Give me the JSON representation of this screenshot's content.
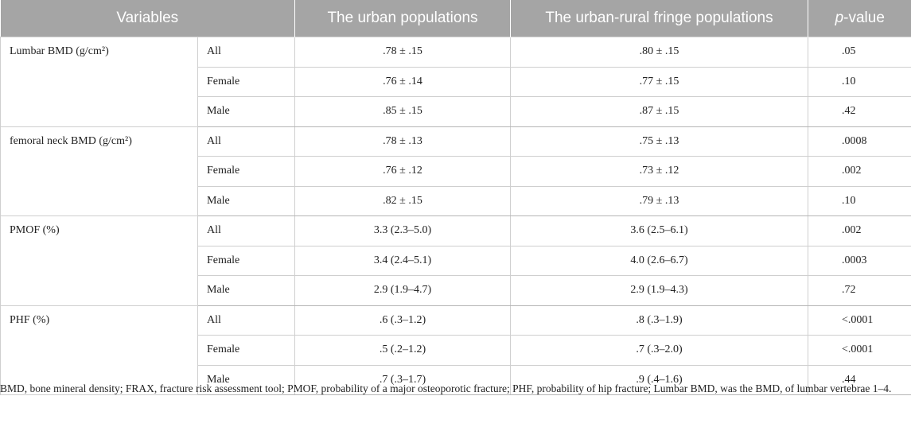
{
  "table": {
    "headers": {
      "variables": "Variables",
      "urban": "The urban populations",
      "fringe": "The urban-rural fringe populations",
      "p_italic": "p",
      "p_rest": "-value"
    },
    "groups": [
      {
        "variable": "Lumbar BMD (g/cm²)",
        "rows": [
          {
            "sex": "All",
            "urban": ".78 ± .15",
            "fringe": ".80 ± .15",
            "p": ".05"
          },
          {
            "sex": "Female",
            "urban": ".76 ± .14",
            "fringe": ".77 ± .15",
            "p": ".10"
          },
          {
            "sex": "Male",
            "urban": ".85 ± .15",
            "fringe": ".87 ± .15",
            "p": ".42"
          }
        ]
      },
      {
        "variable": "femoral neck BMD (g/cm²)",
        "rows": [
          {
            "sex": "All",
            "urban": ".78 ± .13",
            "fringe": ".75 ± .13",
            "p": ".0008"
          },
          {
            "sex": "Female",
            "urban": ".76 ± .12",
            "fringe": ".73 ± .12",
            "p": ".002"
          },
          {
            "sex": "Male",
            "urban": ".82 ± .15",
            "fringe": ".79 ± .13",
            "p": ".10"
          }
        ]
      },
      {
        "variable": "PMOF (%)",
        "rows": [
          {
            "sex": "All",
            "urban": "3.3 (2.3–5.0)",
            "fringe": "3.6 (2.5–6.1)",
            "p": ".002"
          },
          {
            "sex": "Female",
            "urban": "3.4 (2.4–5.1)",
            "fringe": "4.0 (2.6–6.7)",
            "p": ".0003"
          },
          {
            "sex": "Male",
            "urban": "2.9 (1.9–4.7)",
            "fringe": "2.9 (1.9–4.3)",
            "p": ".72"
          }
        ]
      },
      {
        "variable": "PHF (%)",
        "rows": [
          {
            "sex": "All",
            "urban": ".6 (.3–1.2)",
            "fringe": ".8 (.3–1.9)",
            "p": "<.0001"
          },
          {
            "sex": "Female",
            "urban": ".5 (.2–1.2)",
            "fringe": ".7 (.3–2.0)",
            "p": "<.0001"
          },
          {
            "sex": "Male",
            "urban": ".7 (.3–1.7)",
            "fringe": ".9 (.4–1.6)",
            "p": ".44"
          }
        ]
      }
    ]
  },
  "footnote": "BMD, bone mineral density; FRAX, fracture risk assessment tool; PMOF, probability of a major osteoporotic fracture; PHF, probability of hip fracture; Lumbar BMD, was the BMD, of lumbar vertebrae 1–4."
}
